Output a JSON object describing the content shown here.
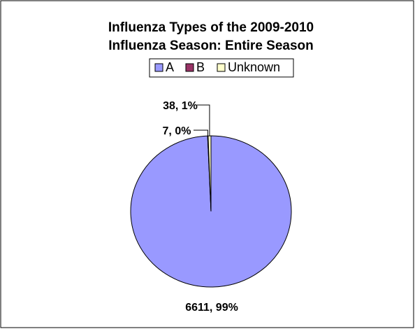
{
  "chart_data": {
    "type": "pie",
    "title": [
      "Influenza Types of the 2009-2010",
      "Influenza Season: Entire Season"
    ],
    "categories": [
      "A",
      "B",
      "Unknown"
    ],
    "values": [
      6611,
      7,
      38
    ],
    "value_labels": [
      "6611, 99%",
      "7, 0%",
      "38, 1%"
    ],
    "colors": [
      "#9999ff",
      "#993366",
      "#ffffcc"
    ],
    "legend": "top"
  }
}
